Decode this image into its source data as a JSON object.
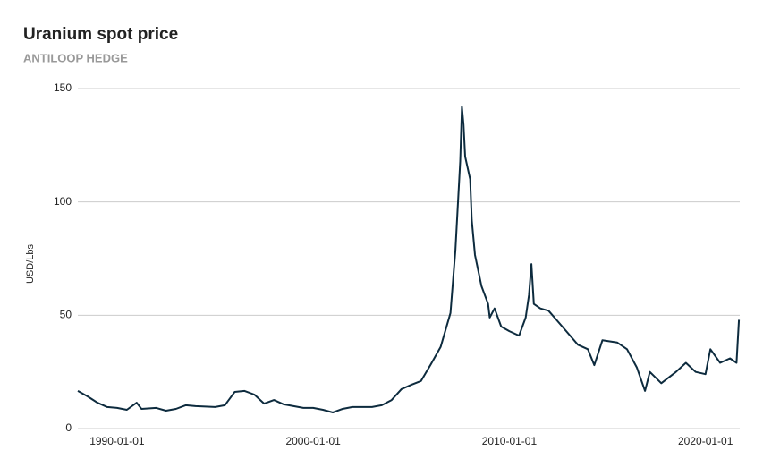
{
  "chart_data": {
    "type": "line",
    "title": "Uranium spot price",
    "subtitle": "ANTILOOP HEDGE",
    "y_label": "USD/Lbs",
    "x": [
      "1988-01-01",
      "1988-07-01",
      "1989-01-01",
      "1989-07-01",
      "1990-01-01",
      "1990-07-01",
      "1991-01-01",
      "1991-04-01",
      "1992-01-01",
      "1992-07-01",
      "1993-01-01",
      "1993-07-01",
      "1994-01-01",
      "1995-01-01",
      "1995-07-01",
      "1996-01-01",
      "1996-07-01",
      "1997-01-01",
      "1997-07-01",
      "1998-01-01",
      "1998-07-01",
      "1999-01-01",
      "1999-07-01",
      "2000-01-01",
      "2000-07-01",
      "2001-01-01",
      "2001-07-01",
      "2002-01-01",
      "2003-01-01",
      "2003-07-01",
      "2004-01-01",
      "2004-07-01",
      "2005-01-01",
      "2005-07-01",
      "2006-01-01",
      "2006-07-01",
      "2007-01-01",
      "2007-04-01",
      "2007-07-01",
      "2007-08-01",
      "2007-09-01",
      "2007-10-01",
      "2008-01-01",
      "2008-02-01",
      "2008-04-01",
      "2008-08-01",
      "2008-12-01",
      "2009-01-01",
      "2009-04-01",
      "2009-08-01",
      "2010-01-01",
      "2010-07-01",
      "2010-11-01",
      "2011-01-01",
      "2011-02-15",
      "2011-04-01",
      "2011-08-01",
      "2012-01-01",
      "2012-07-01",
      "2013-01-01",
      "2013-07-01",
      "2014-01-01",
      "2014-05-01",
      "2014-10-01",
      "2015-07-01",
      "2016-01-01",
      "2016-07-01",
      "2016-12-01",
      "2017-03-01",
      "2017-10-01",
      "2018-07-01",
      "2019-01-01",
      "2019-07-01",
      "2020-01-01",
      "2020-04-01",
      "2020-10-01",
      "2021-04-01",
      "2021-08-01",
      "2021-09-15"
    ],
    "series": [
      {
        "name": "Uranium",
        "color": "#0d2b3e",
        "values": [
          16.6,
          14.2,
          11.4,
          9.5,
          9.1,
          8.3,
          11.4,
          8.7,
          9.1,
          7.9,
          8.7,
          10.3,
          9.9,
          9.5,
          10.3,
          16.2,
          16.6,
          15,
          11,
          12.6,
          10.7,
          9.9,
          9.1,
          9.1,
          8.3,
          7.1,
          8.7,
          9.5,
          9.5,
          10.3,
          12.6,
          17.4,
          19.3,
          21,
          28.4,
          36,
          51,
          78.6,
          118,
          142,
          134,
          120,
          110,
          92,
          76.6,
          62.8,
          55,
          49,
          53,
          45,
          43,
          41,
          49,
          59,
          72.6,
          55,
          53,
          52,
          47,
          42,
          37,
          35,
          28,
          39,
          38,
          35,
          27,
          16.6,
          25,
          20,
          25,
          29,
          25,
          24,
          35,
          29,
          31,
          29,
          48
        ]
      }
    ],
    "xlim": [
      "1988-01-01",
      "2021-09-30"
    ],
    "xticks": [
      "1990-01-01",
      "2000-01-01",
      "2010-01-01",
      "2020-01-01"
    ],
    "ylim": [
      0,
      150
    ],
    "yticks": [
      0,
      50,
      100,
      150
    ],
    "grid": true
  }
}
